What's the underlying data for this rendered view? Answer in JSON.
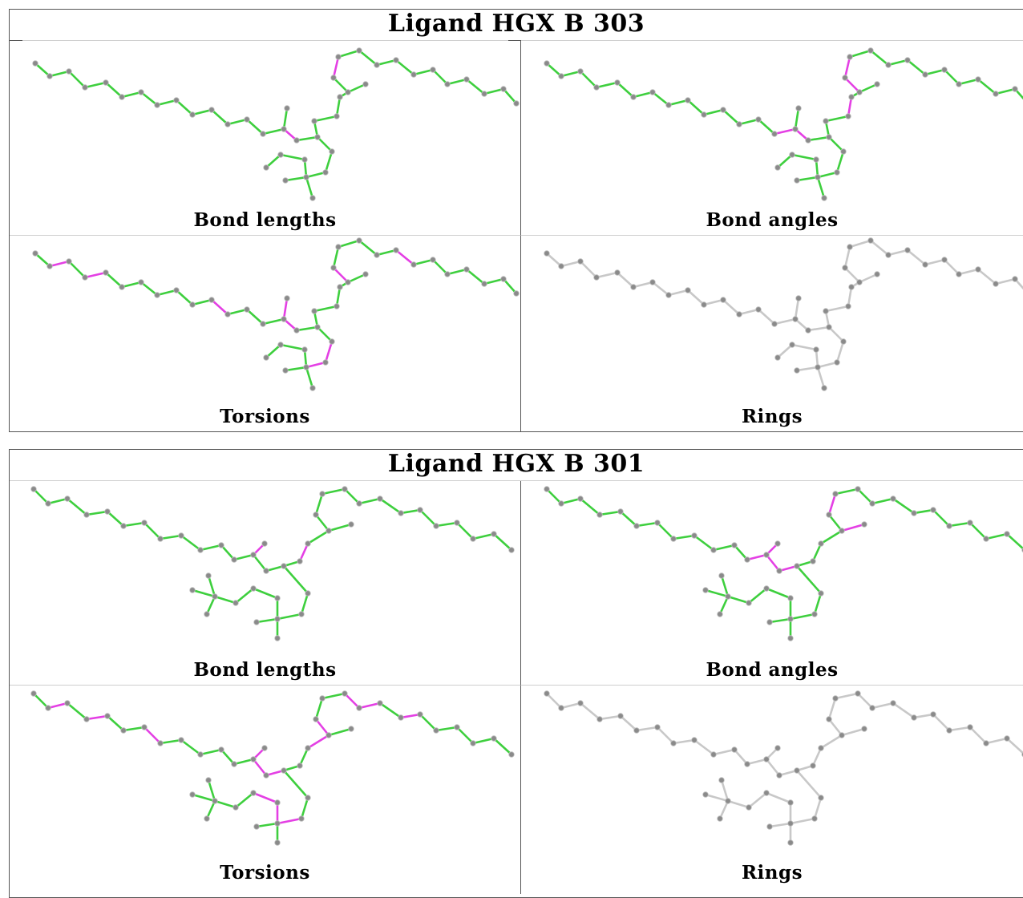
{
  "colors": {
    "ok_bond": "#3ecf3e",
    "outlier_bond": "#e43fe4",
    "neutral_bond": "#c8c8c8",
    "atom": "#8a8a8a",
    "atom_highlight": "#bdbdbd"
  },
  "ligands": [
    {
      "title": "Ligand HGX B 303",
      "panels": [
        {
          "caption": "Bond lengths",
          "style": "validated"
        },
        {
          "caption": "Bond angles",
          "style": "validated"
        },
        {
          "caption": "Torsions",
          "style": "validated"
        },
        {
          "caption": "Rings",
          "style": "neutral"
        }
      ]
    },
    {
      "title": "Ligand HGX B 301",
      "panels": [
        {
          "caption": "Bond lengths",
          "style": "validated"
        },
        {
          "caption": "Bond angles",
          "style": "validated"
        },
        {
          "caption": "Torsions",
          "style": "validated"
        },
        {
          "caption": "Rings",
          "style": "neutral"
        }
      ]
    }
  ]
}
